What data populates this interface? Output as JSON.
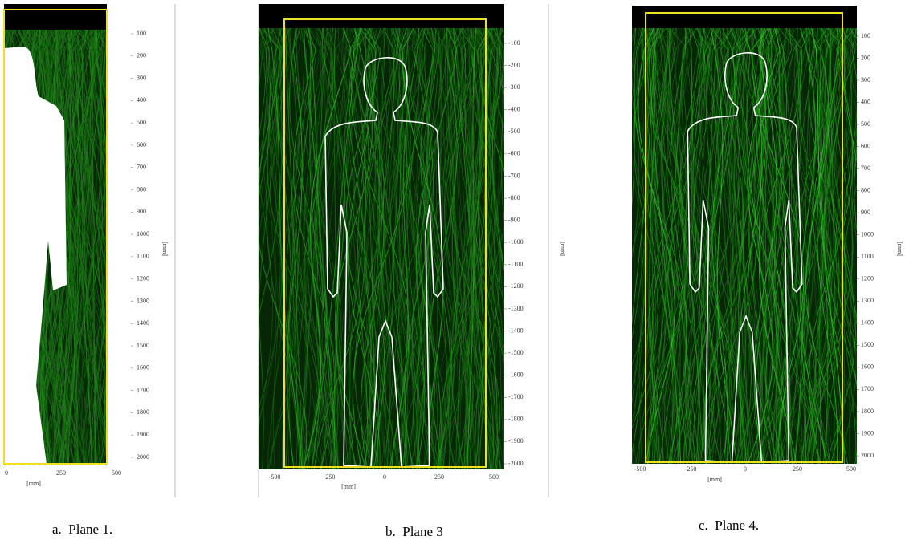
{
  "panels": [
    {
      "yticks": [
        100,
        200,
        300,
        400,
        500,
        600,
        700,
        800,
        900,
        1000,
        1100,
        1200,
        1300,
        1400,
        1500,
        1600,
        1700,
        1800,
        1900,
        2000
      ],
      "xticks": [
        0,
        250,
        500
      ],
      "xlabel": "[mm]",
      "ylabel": "[mm]",
      "caption": "a.  Plane 1."
    },
    {
      "yticks": [
        -100,
        -200,
        -300,
        -400,
        -500,
        -600,
        -700,
        -800,
        -900,
        -1000,
        -1100,
        -1200,
        -1300,
        -1400,
        -1500,
        -1600,
        -1700,
        -1800,
        -1900,
        -2000
      ],
      "xticks": [
        -500,
        -250,
        0,
        250,
        500
      ],
      "xlabel": "[mm]",
      "ylabel": "[mm]",
      "caption": "b.  Plane 3"
    },
    {
      "yticks": [
        100,
        200,
        300,
        400,
        500,
        600,
        700,
        800,
        900,
        1000,
        1100,
        1200,
        1300,
        1400,
        1500,
        1600,
        1700,
        1800,
        1900,
        2000
      ],
      "xticks": [
        -500,
        -250,
        0,
        250,
        500
      ],
      "xlabel": "[mm]",
      "ylabel": "[mm]",
      "caption": "c.  Plane 4."
    }
  ]
}
